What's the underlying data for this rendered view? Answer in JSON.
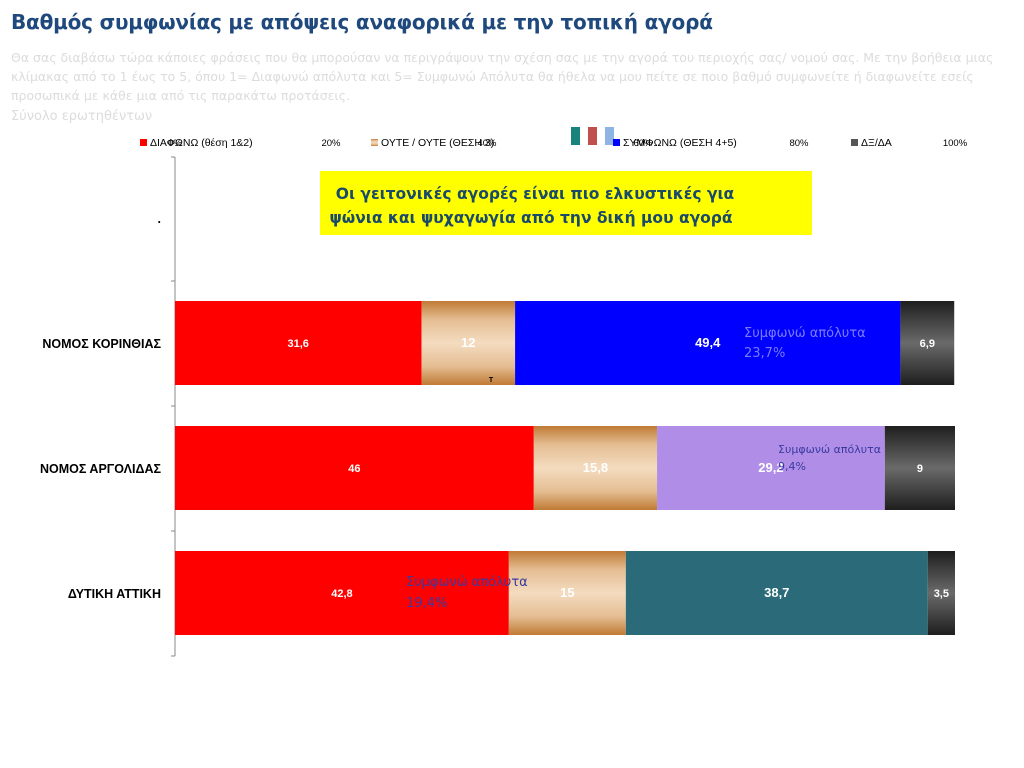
{
  "page": {
    "title": "Βαθμός συμφωνίας με απόψεις αναφορικά με την τοπική αγορά",
    "subtitle": "Θα σας διαβάσω τώρα κάποιες φράσεις που θα μπορούσαν να περιγράψουν την σχέση σας με την αγορά του περιοχής σας/ νομού σας. Με την βοήθεια μιας κλίμακας από το 1 έως το 5, όπου 1= Διαφωνώ απόλυτα και 5= Συμφωνώ Απόλυτα θα ήθελα να μου πείτε σε ποιο βαθμό συμφωνείτε ή διαφωνείτε εσείς προσωπικά με κάθε μια από τις παρακάτω προτάσεις.",
    "base": "Σύνολο ερωτηθέντων",
    "colors": {
      "small_square_1": "#17837b",
      "small_square_2": "#c0504d",
      "small_square_3": "#8eb4e3"
    }
  },
  "chart_data": {
    "type": "bar",
    "orientation": "horizontal",
    "stacked": true,
    "statement": "Οι γειτονικές αγορές είναι πιο ελκυστικές για ψώνια και ψυχαγωγία από  την δική μου αγορά",
    "statement_highlight": "#ffff00",
    "xlim": [
      0,
      100
    ],
    "x_ticks": [
      "0%",
      "20%",
      "40%",
      "60%",
      "80%",
      "100%"
    ],
    "legend_position": "top",
    "categories": [
      ".",
      "ΝΟΜΟΣ ΚΟΡΙΝΘΙΑΣ",
      "ΝΟΜΟΣ ΑΡΓΟΛΙΔΑΣ",
      "ΔΥΤΙΚΗ ΑΤΤΙΚΗ"
    ],
    "series": [
      {
        "name": "ΔΙΑΦΩΝΩ (θέση 1&2)",
        "color": "#ff0000",
        "values": [
          null,
          31.6,
          46,
          42.8
        ],
        "labels": [
          "",
          "31,6",
          "46",
          "42,8"
        ]
      },
      {
        "name": "ΟΥΤΕ / ΟΥΤΕ (ΘΕΣΗ 3)",
        "color": "#e9c9a6",
        "values": [
          null,
          12,
          15.8,
          15
        ],
        "labels": [
          "",
          "12",
          "15,8",
          "15"
        ]
      },
      {
        "name": "ΣΥΜΦΩΝΩ (ΘΕΣΗ 4+5)",
        "color": "#0000ff",
        "values": [
          null,
          49.4,
          29.2,
          38.7
        ],
        "labels": [
          "",
          "49,4",
          "29,2",
          "38,7"
        ],
        "row_colors": [
          null,
          "#0000ff",
          "#b08ee8",
          "#2b6a78"
        ]
      },
      {
        "name": "ΔΞ/ΔΑ",
        "color": "#404040",
        "values": [
          null,
          6.9,
          9,
          3.5
        ],
        "labels": [
          "",
          "6,9",
          "9",
          "3,5"
        ]
      }
    ],
    "annotations": [
      {
        "row": 1,
        "line1": "Συμφωνώ απόλυτα",
        "line2": "23,7%",
        "color": "#7a7aff"
      },
      {
        "row": 2,
        "line1": "Συμφωνώ απόλυτα",
        "line2": "9,4%",
        "color": "#3a3aa0"
      },
      {
        "row": 3,
        "line1": "Συμφωνώ απόλυτα",
        "line2": "19,4%",
        "color": "#3a3aa0"
      }
    ],
    "stray_label": "T"
  }
}
